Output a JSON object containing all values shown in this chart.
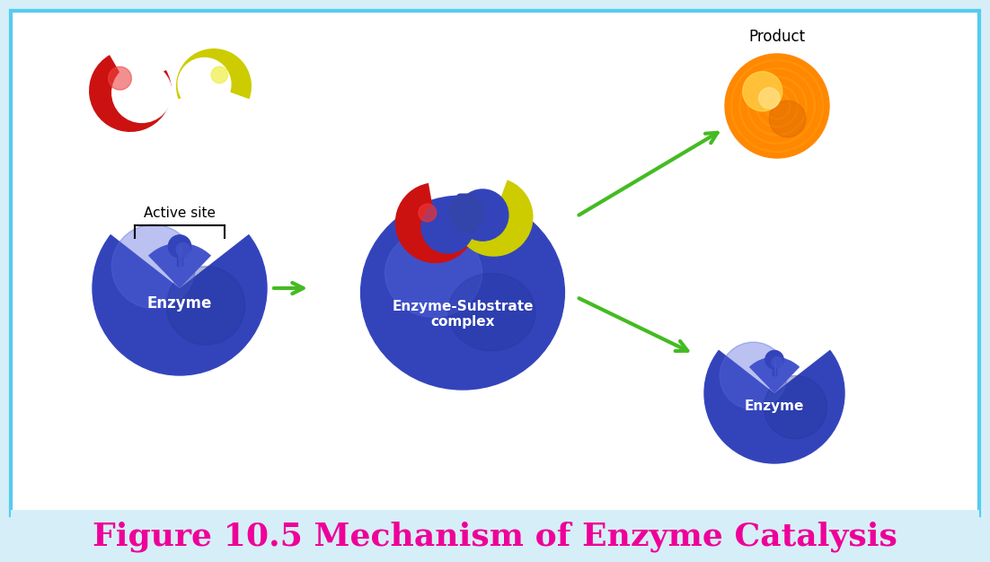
{
  "title": "Figure 10.5 Mechanism of Enzyme Catalysis",
  "title_color": "#EE0099",
  "title_fontsize": 26,
  "background_color": "#D6EEF8",
  "panel_background": "#FFFFFF",
  "border_color": "#55CCEE",
  "enzyme_color_main": "#3344BB",
  "enzyme_color_light": "#5566DD",
  "enzyme_color_dark": "#223399",
  "enzyme_color_mid": "#4455CC",
  "substrate_red": "#CC1111",
  "substrate_yellow": "#CCCC00",
  "substrate_blue": "#3344AA",
  "product_orange": "#FF8800",
  "product_light": "#FFCC00",
  "arrow_color": "#44BB22",
  "active_site_text": "Active site",
  "enzyme_text": "Enzyme",
  "complex_text": "Enzyme-Substrate\ncomplex",
  "product_text": "Product"
}
